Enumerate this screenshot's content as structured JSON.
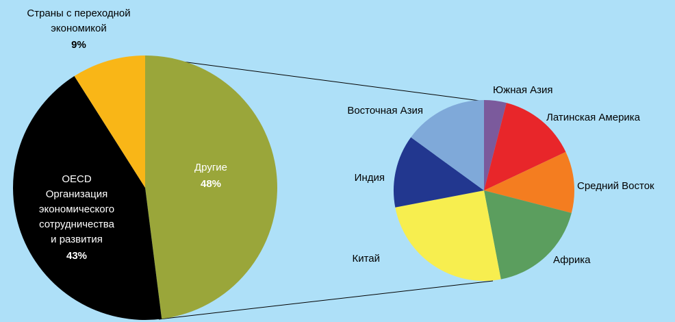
{
  "chart_data": [
    {
      "type": "pie",
      "categories": [
        "Другие",
        "OECD\nОрганизация\nэкономического\nсотрудничества\nи развития",
        "Страны с переходной\nэкономикой"
      ],
      "values": [
        48,
        43,
        9
      ],
      "value_labels": [
        "48%",
        "43%",
        "9%"
      ],
      "colors": [
        "#9aa63a",
        "#000000",
        "#f9b617"
      ]
    },
    {
      "type": "pie",
      "categories": [
        "Южная Азия",
        "Латинская Америка",
        "Средний Восток",
        "Африка",
        "Китай",
        "Индия",
        "Восточная Азия"
      ],
      "values": [
        4,
        14,
        11,
        18,
        25,
        13,
        15
      ],
      "colors": [
        "#7b5a9c",
        "#e8262a",
        "#f47d20",
        "#5b9e5e",
        "#f7ee4f",
        "#22378f",
        "#7fa9d9"
      ]
    }
  ]
}
